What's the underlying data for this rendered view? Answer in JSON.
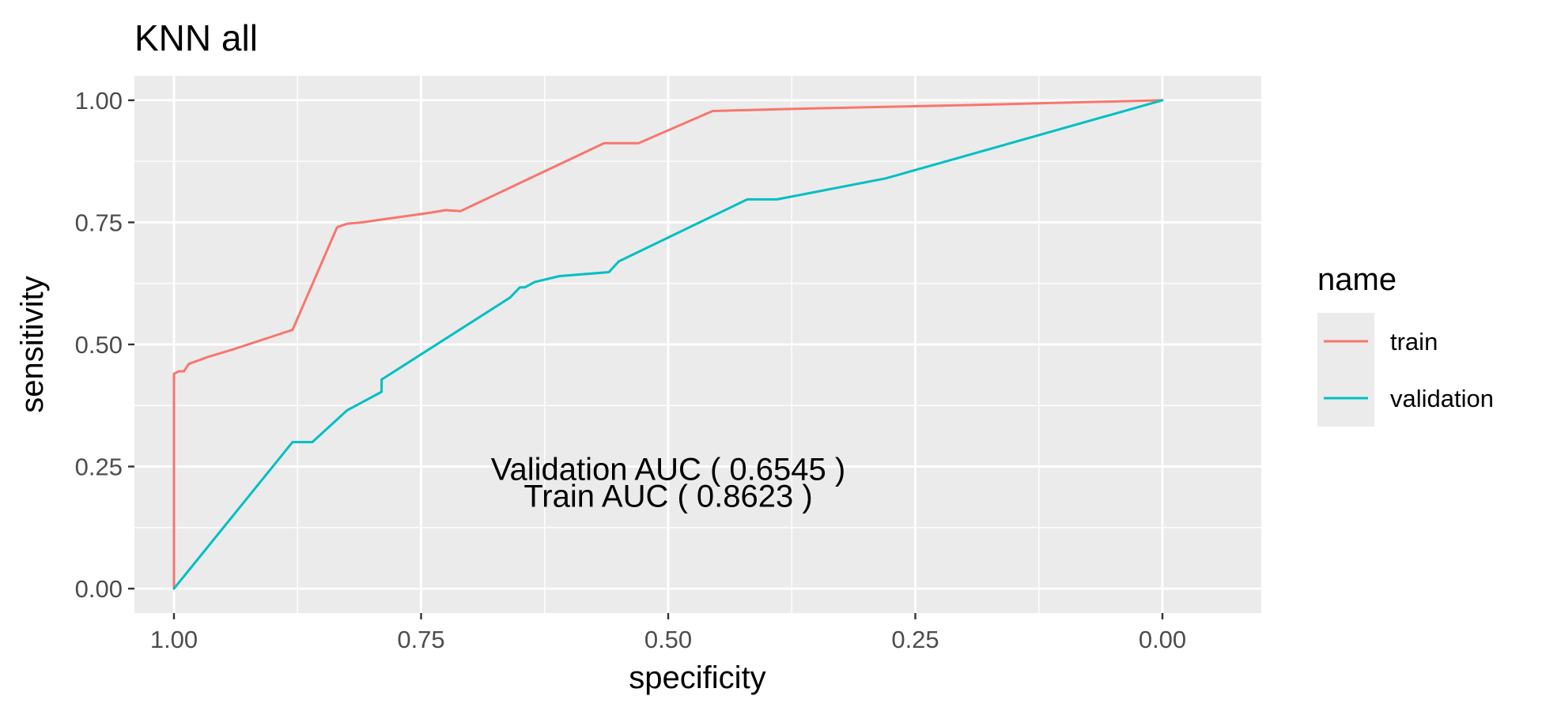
{
  "chart_data": {
    "type": "line",
    "title": "KNN  all",
    "xlabel": "specificity",
    "ylabel": "sensitivity",
    "x_reversed": true,
    "xlim": [
      1.04,
      -0.1
    ],
    "ylim": [
      -0.05,
      1.05
    ],
    "xticks": [
      1.0,
      0.75,
      0.5,
      0.25,
      0.0
    ],
    "xtick_labels": [
      "1.00",
      "0.75",
      "0.50",
      "0.25",
      "0.00"
    ],
    "yticks": [
      0.0,
      0.25,
      0.5,
      0.75,
      1.0
    ],
    "ytick_labels": [
      "0.00",
      "0.25",
      "0.50",
      "0.75",
      "1.00"
    ],
    "grid": true,
    "legend": {
      "title": "name",
      "position": "right"
    },
    "series": [
      {
        "name": "train",
        "color": "#F8766D",
        "points": [
          [
            1.0,
            0.0
          ],
          [
            1.0,
            0.44
          ],
          [
            0.995,
            0.445
          ],
          [
            0.99,
            0.445
          ],
          [
            0.985,
            0.46
          ],
          [
            0.965,
            0.475
          ],
          [
            0.94,
            0.49
          ],
          [
            0.88,
            0.53
          ],
          [
            0.835,
            0.74
          ],
          [
            0.825,
            0.747
          ],
          [
            0.81,
            0.75
          ],
          [
            0.74,
            0.77
          ],
          [
            0.725,
            0.775
          ],
          [
            0.71,
            0.773
          ],
          [
            0.565,
            0.912
          ],
          [
            0.53,
            0.912
          ],
          [
            0.455,
            0.978
          ],
          [
            0.38,
            0.982
          ],
          [
            0.2,
            0.99
          ],
          [
            0.0,
            1.0
          ]
        ]
      },
      {
        "name": "validation",
        "color": "#00BFC4",
        "points": [
          [
            1.0,
            0.0
          ],
          [
            0.88,
            0.3
          ],
          [
            0.86,
            0.3
          ],
          [
            0.825,
            0.365
          ],
          [
            0.79,
            0.403
          ],
          [
            0.79,
            0.428
          ],
          [
            0.66,
            0.596
          ],
          [
            0.65,
            0.617
          ],
          [
            0.645,
            0.617
          ],
          [
            0.635,
            0.628
          ],
          [
            0.61,
            0.64
          ],
          [
            0.56,
            0.648
          ],
          [
            0.55,
            0.67
          ],
          [
            0.42,
            0.797
          ],
          [
            0.39,
            0.797
          ],
          [
            0.28,
            0.84
          ],
          [
            0.0,
            1.0
          ]
        ]
      }
    ],
    "annotations": [
      {
        "text": "Validation AUC ( 0.6545 )",
        "x": 0.5,
        "y": 0.245
      },
      {
        "text": "Train AUC ( 0.8623 )",
        "x": 0.5,
        "y": 0.19
      }
    ],
    "panel_color": "#EBEBEB",
    "grid_color": "#FFFFFF"
  }
}
